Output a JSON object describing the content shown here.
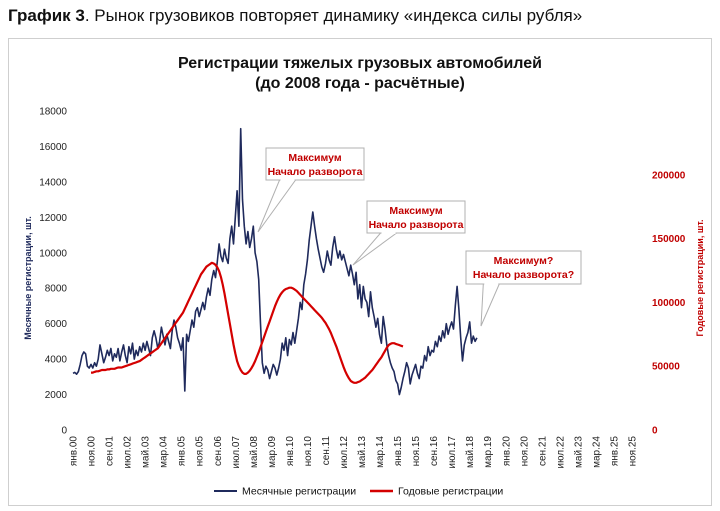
{
  "caption": {
    "prefix": "График 3",
    "text": ". Рынок грузовиков повторяет динамику «индекса силы рубля»"
  },
  "colors": {
    "monthly": "#1f2a5c",
    "annual": "#d40000",
    "annotation": "#c00000"
  },
  "chart_data": {
    "type": "line",
    "title": "Регистрации тяжелых грузовых автомобилей",
    "subtitle": "(до 2008 года - расчётные)",
    "ylabel": "Месячные регистрации, шт.",
    "ylabel_right": "Годовые регистрации, шт.",
    "ylim": [
      0,
      18000
    ],
    "ylim_right": [
      0,
      250000
    ],
    "y_ticks": [
      "0",
      "2000",
      "4000",
      "6000",
      "8000",
      "10000",
      "12000",
      "14000",
      "16000",
      "18000"
    ],
    "y_ticks_right": [
      "0",
      "50000",
      "100000",
      "150000",
      "200000"
    ],
    "x_ticks": [
      "янв.00",
      "ноя.00",
      "сен.01",
      "июл.02",
      "май.03",
      "мар.04",
      "янв.05",
      "ноя.05",
      "сен.06",
      "июл.07",
      "май.08",
      "мар.09",
      "янв.10",
      "ноя.10",
      "сен.11",
      "июл.12",
      "май.13",
      "мар.14",
      "янв.15",
      "ноя.15",
      "сен.16",
      "июл.17",
      "май.18",
      "мар.19",
      "янв.20",
      "ноя.20",
      "сен.21",
      "июл.22",
      "май.23",
      "мар.24",
      "янв.25",
      "ноя.25"
    ],
    "legend_position": "bottom",
    "series": [
      {
        "name": "Месячные регистрации",
        "axis": "left",
        "x_start": "янв.00",
        "values": [
          3200,
          3250,
          3150,
          3300,
          3700,
          4200,
          4400,
          4300,
          3600,
          3500,
          3700,
          3500,
          3800,
          3600,
          4000,
          4800,
          4300,
          3800,
          4100,
          4500,
          4200,
          4600,
          3900,
          4300,
          4100,
          4600,
          3900,
          4400,
          4800,
          4200,
          3800,
          4700,
          4300,
          4900,
          4000,
          4500,
          4200,
          4700,
          4400,
          4900,
          4500,
          5000,
          4600,
          4200,
          5200,
          5600,
          5200,
          4600,
          5000,
          5800,
          5300,
          4800,
          5400,
          5000,
          4600,
          5600,
          6200,
          5800,
          5200,
          4900,
          4500,
          5200,
          2200,
          5400,
          5000,
          5600,
          6200,
          5800,
          6700,
          6900,
          6400,
          6800,
          7200,
          6800,
          7500,
          8000,
          7600,
          8500,
          9000,
          8600,
          9500,
          10500,
          9800,
          9500,
          10200,
          9700,
          9400,
          10800,
          11500,
          10500,
          12000,
          13500,
          11500,
          17000,
          13000,
          11500,
          10500,
          11200,
          10300,
          10800,
          11500,
          10000,
          9500,
          8500,
          6000,
          3800,
          3200,
          3600,
          3400,
          2900,
          3300,
          3700,
          3500,
          3100,
          3500,
          4000,
          4900,
          4500,
          5200,
          4200,
          5100,
          4800,
          5500,
          4900,
          5600,
          6300,
          7200,
          6800,
          8200,
          8800,
          9600,
          10700,
          11500,
          12300,
          11500,
          10800,
          10200,
          9700,
          9200,
          8900,
          9400,
          10100,
          9600,
          9300,
          10300,
          10900,
          10200,
          9700,
          10100,
          9600,
          9900,
          9500,
          9100,
          8700,
          9300,
          8800,
          8200,
          8900,
          7400,
          8200,
          6900,
          8100,
          7400,
          7200,
          6400,
          7800,
          6900,
          6400,
          5800,
          6300,
          5400,
          4900,
          6400,
          5700,
          4800,
          4200,
          3800,
          3500,
          3300,
          2800,
          2600,
          2000,
          2400,
          2900,
          3300,
          3800,
          3500,
          2600,
          3100,
          3400,
          3700,
          3200,
          2900,
          3600,
          3500,
          4200,
          3900,
          4700,
          4200,
          4500,
          4400,
          5000,
          4700,
          5300,
          5000,
          5600,
          5200,
          6000,
          5400,
          5800,
          6100,
          5700,
          7000,
          8100,
          6800,
          5200,
          3900,
          4800,
          5200,
          5500,
          6100,
          4900,
          5300,
          5000,
          5200
        ]
      },
      {
        "name": "Годовые регистрации",
        "axis": "right",
        "x_start": "ноя.00",
        "values": [
          45000,
          45000,
          45500,
          46000,
          46000,
          46500,
          47000,
          47000,
          47000,
          47500,
          47500,
          48000,
          48000,
          48000,
          48500,
          49000,
          49000,
          49000,
          49500,
          50000,
          50500,
          51000,
          51500,
          52000,
          52500,
          53000,
          53500,
          54000,
          55000,
          56000,
          57000,
          58000,
          59000,
          60000,
          61000,
          62000,
          63000,
          64000,
          66000,
          68000,
          70000,
          72000,
          74000,
          76000,
          78000,
          80000,
          82000,
          84000,
          86000,
          88000,
          90000,
          92000,
          95000,
          98000,
          101000,
          104000,
          107000,
          110000,
          113000,
          116000,
          119000,
          122000,
          124000,
          126000,
          128000,
          129000,
          130000,
          131000,
          130500,
          129500,
          127500,
          124500,
          120000,
          114000,
          107000,
          99000,
          91000,
          83000,
          75000,
          67000,
          60000,
          54000,
          50000,
          47000,
          45000,
          44000,
          44000,
          45000,
          46500,
          48500,
          51000,
          54000,
          57500,
          61000,
          65000,
          69000,
          73000,
          77000,
          81000,
          85000,
          89000,
          93000,
          97000,
          100500,
          103500,
          106000,
          108000,
          109500,
          110500,
          111000,
          111500,
          111500,
          111000,
          110000,
          109000,
          107500,
          106000,
          104500,
          103000,
          101500,
          100000,
          98500,
          97000,
          95500,
          94000,
          92500,
          91000,
          89500,
          88000,
          86000,
          84000,
          81500,
          79000,
          76000,
          72500,
          69000,
          65500,
          61500,
          57500,
          53500,
          49500,
          46000,
          43000,
          40500,
          38500,
          37500,
          37000,
          37000,
          37500,
          38000,
          39000,
          40000,
          41000,
          42500,
          44000,
          45500,
          47000,
          49000,
          51000,
          53000,
          55000,
          57000,
          59500,
          62000,
          64500,
          66500,
          67500,
          68000,
          68000,
          67500,
          67000,
          66500,
          66000,
          65500
        ]
      }
    ],
    "annotations": [
      {
        "lines": [
          "Максимум",
          "Начало разворота"
        ]
      },
      {
        "lines": [
          "Максимум",
          "Начало разворота"
        ]
      },
      {
        "lines": [
          "Максимум?",
          "Начало разворота?"
        ]
      }
    ]
  }
}
